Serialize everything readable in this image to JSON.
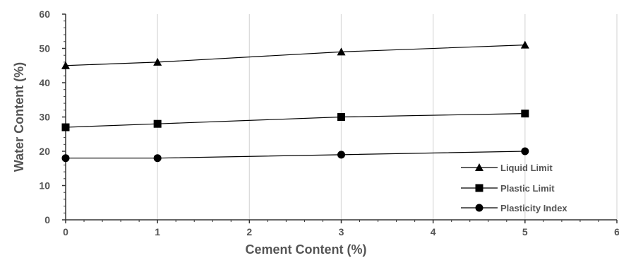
{
  "chart_data": {
    "type": "line",
    "title": "",
    "xlabel": "Cement Content (%)",
    "ylabel": "Water Content (%)",
    "xlim": [
      0,
      6
    ],
    "ylim": [
      0,
      60
    ],
    "x_ticks": [
      "0",
      "1",
      "2",
      "3",
      "4",
      "5",
      "6"
    ],
    "y_ticks": [
      "0",
      "10",
      "20",
      "30",
      "40",
      "50",
      "60"
    ],
    "grid": true,
    "legend_position": "bottom-right",
    "series": [
      {
        "name": "Liquid Limit",
        "marker": "triangle",
        "color": "#000000",
        "x": [
          0,
          1,
          3,
          5
        ],
        "y": [
          45,
          46,
          49,
          51
        ]
      },
      {
        "name": "Plastic Limit",
        "marker": "square",
        "color": "#000000",
        "x": [
          0,
          1,
          3,
          5
        ],
        "y": [
          27,
          28,
          30,
          31
        ]
      },
      {
        "name": "Plasticity Index",
        "marker": "circle",
        "color": "#000000",
        "x": [
          0,
          1,
          3,
          5
        ],
        "y": [
          18,
          18,
          19,
          20
        ]
      }
    ]
  }
}
